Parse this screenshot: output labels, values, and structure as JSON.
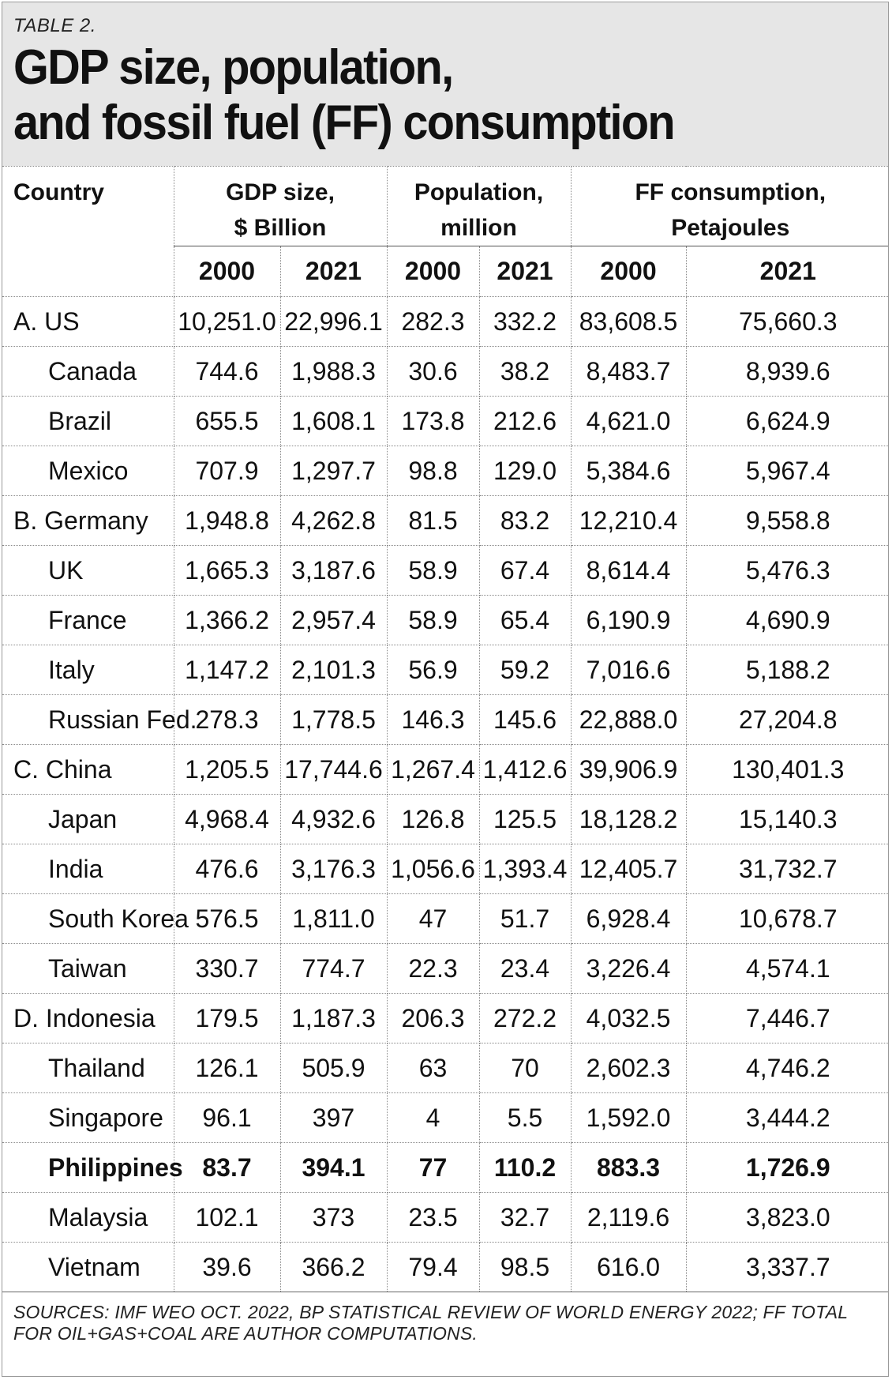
{
  "header": {
    "table_label": "TABLE 2.",
    "title_line1": "GDP size, population,",
    "title_line2": "and fossil fuel (FF) consumption"
  },
  "columns": {
    "country": "Country",
    "gdp_line1": "GDP size,",
    "gdp_line2": "$ Billion",
    "pop_line1": "Population,",
    "pop_line2": "million",
    "ff_line1": "FF consumption,",
    "ff_line2": "Petajoules",
    "years": [
      "2000",
      "2021",
      "2000",
      "2021",
      "2000",
      "2021"
    ]
  },
  "rows": [
    {
      "country": "A. US",
      "sub": false,
      "bold": false,
      "gdp2000": "10,251.0",
      "gdp2021": "22,996.1",
      "pop2000": "282.3",
      "pop2021": "332.2",
      "ff2000": "83,608.5",
      "ff2021": "75,660.3"
    },
    {
      "country": "Canada",
      "sub": true,
      "bold": false,
      "gdp2000": "744.6",
      "gdp2021": "1,988.3",
      "pop2000": "30.6",
      "pop2021": "38.2",
      "ff2000": "8,483.7",
      "ff2021": "8,939.6"
    },
    {
      "country": "Brazil",
      "sub": true,
      "bold": false,
      "gdp2000": "655.5",
      "gdp2021": "1,608.1",
      "pop2000": "173.8",
      "pop2021": "212.6",
      "ff2000": "4,621.0",
      "ff2021": "6,624.9"
    },
    {
      "country": "Mexico",
      "sub": true,
      "bold": false,
      "gdp2000": "707.9",
      "gdp2021": "1,297.7",
      "pop2000": "98.8",
      "pop2021": "129.0",
      "ff2000": "5,384.6",
      "ff2021": "5,967.4"
    },
    {
      "country": "B. Germany",
      "sub": false,
      "bold": false,
      "gdp2000": "1,948.8",
      "gdp2021": "4,262.8",
      "pop2000": "81.5",
      "pop2021": "83.2",
      "ff2000": "12,210.4",
      "ff2021": "9,558.8"
    },
    {
      "country": "UK",
      "sub": true,
      "bold": false,
      "gdp2000": "1,665.3",
      "gdp2021": "3,187.6",
      "pop2000": "58.9",
      "pop2021": "67.4",
      "ff2000": "8,614.4",
      "ff2021": "5,476.3"
    },
    {
      "country": "France",
      "sub": true,
      "bold": false,
      "gdp2000": "1,366.2",
      "gdp2021": "2,957.4",
      "pop2000": "58.9",
      "pop2021": "65.4",
      "ff2000": "6,190.9",
      "ff2021": "4,690.9"
    },
    {
      "country": "Italy",
      "sub": true,
      "bold": false,
      "gdp2000": "1,147.2",
      "gdp2021": "2,101.3",
      "pop2000": "56.9",
      "pop2021": "59.2",
      "ff2000": "7,016.6",
      "ff2021": "5,188.2"
    },
    {
      "country": "Russian Fed.",
      "sub": true,
      "bold": false,
      "gdp2000": "278.3",
      "gdp2021": "1,778.5",
      "pop2000": "146.3",
      "pop2021": "145.6",
      "ff2000": "22,888.0",
      "ff2021": "27,204.8"
    },
    {
      "country": "C. China",
      "sub": false,
      "bold": false,
      "gdp2000": "1,205.5",
      "gdp2021": "17,744.6",
      "pop2000": "1,267.4",
      "pop2021": "1,412.6",
      "ff2000": "39,906.9",
      "ff2021": "130,401.3"
    },
    {
      "country": "Japan",
      "sub": true,
      "bold": false,
      "gdp2000": "4,968.4",
      "gdp2021": "4,932.6",
      "pop2000": "126.8",
      "pop2021": "125.5",
      "ff2000": "18,128.2",
      "ff2021": "15,140.3"
    },
    {
      "country": "India",
      "sub": true,
      "bold": false,
      "gdp2000": "476.6",
      "gdp2021": "3,176.3",
      "pop2000": "1,056.6",
      "pop2021": "1,393.4",
      "ff2000": "12,405.7",
      "ff2021": "31,732.7"
    },
    {
      "country": "South Korea",
      "sub": true,
      "bold": false,
      "gdp2000": "576.5",
      "gdp2021": "1,811.0",
      "pop2000": "47",
      "pop2021": "51.7",
      "ff2000": "6,928.4",
      "ff2021": "10,678.7"
    },
    {
      "country": "Taiwan",
      "sub": true,
      "bold": false,
      "gdp2000": "330.7",
      "gdp2021": "774.7",
      "pop2000": "22.3",
      "pop2021": "23.4",
      "ff2000": "3,226.4",
      "ff2021": "4,574.1"
    },
    {
      "country": "D. Indonesia",
      "sub": false,
      "bold": false,
      "gdp2000": "179.5",
      "gdp2021": "1,187.3",
      "pop2000": "206.3",
      "pop2021": "272.2",
      "ff2000": "4,032.5",
      "ff2021": "7,446.7"
    },
    {
      "country": "Thailand",
      "sub": true,
      "bold": false,
      "gdp2000": "126.1",
      "gdp2021": "505.9",
      "pop2000": "63",
      "pop2021": "70",
      "ff2000": "2,602.3",
      "ff2021": "4,746.2"
    },
    {
      "country": "Singapore",
      "sub": true,
      "bold": false,
      "gdp2000": "96.1",
      "gdp2021": "397",
      "pop2000": "4",
      "pop2021": "5.5",
      "ff2000": "1,592.0",
      "ff2021": "3,444.2"
    },
    {
      "country": "Philippines",
      "sub": true,
      "bold": true,
      "gdp2000": "83.7",
      "gdp2021": "394.1",
      "pop2000": "77",
      "pop2021": "110.2",
      "ff2000": "883.3",
      "ff2021": "1,726.9"
    },
    {
      "country": "Malaysia",
      "sub": true,
      "bold": false,
      "gdp2000": "102.1",
      "gdp2021": "373",
      "pop2000": "23.5",
      "pop2021": "32.7",
      "ff2000": "2,119.6",
      "ff2021": "3,823.0"
    },
    {
      "country": "Vietnam",
      "sub": true,
      "bold": false,
      "gdp2000": "39.6",
      "gdp2021": "366.2",
      "pop2000": "79.4",
      "pop2021": "98.5",
      "ff2000": "616.0",
      "ff2021": "3,337.7"
    }
  ],
  "footer": {
    "sources": "SOURCES: IMF WEO OCT. 2022, BP STATISTICAL REVIEW OF WORLD ENERGY 2022; FF TOTAL FOR OIL+GAS+COAL ARE AUTHOR COMPUTATIONS."
  },
  "colors": {
    "header_background": "#e6e6e6",
    "text": "#111111",
    "grid": "#8a8a8a"
  }
}
